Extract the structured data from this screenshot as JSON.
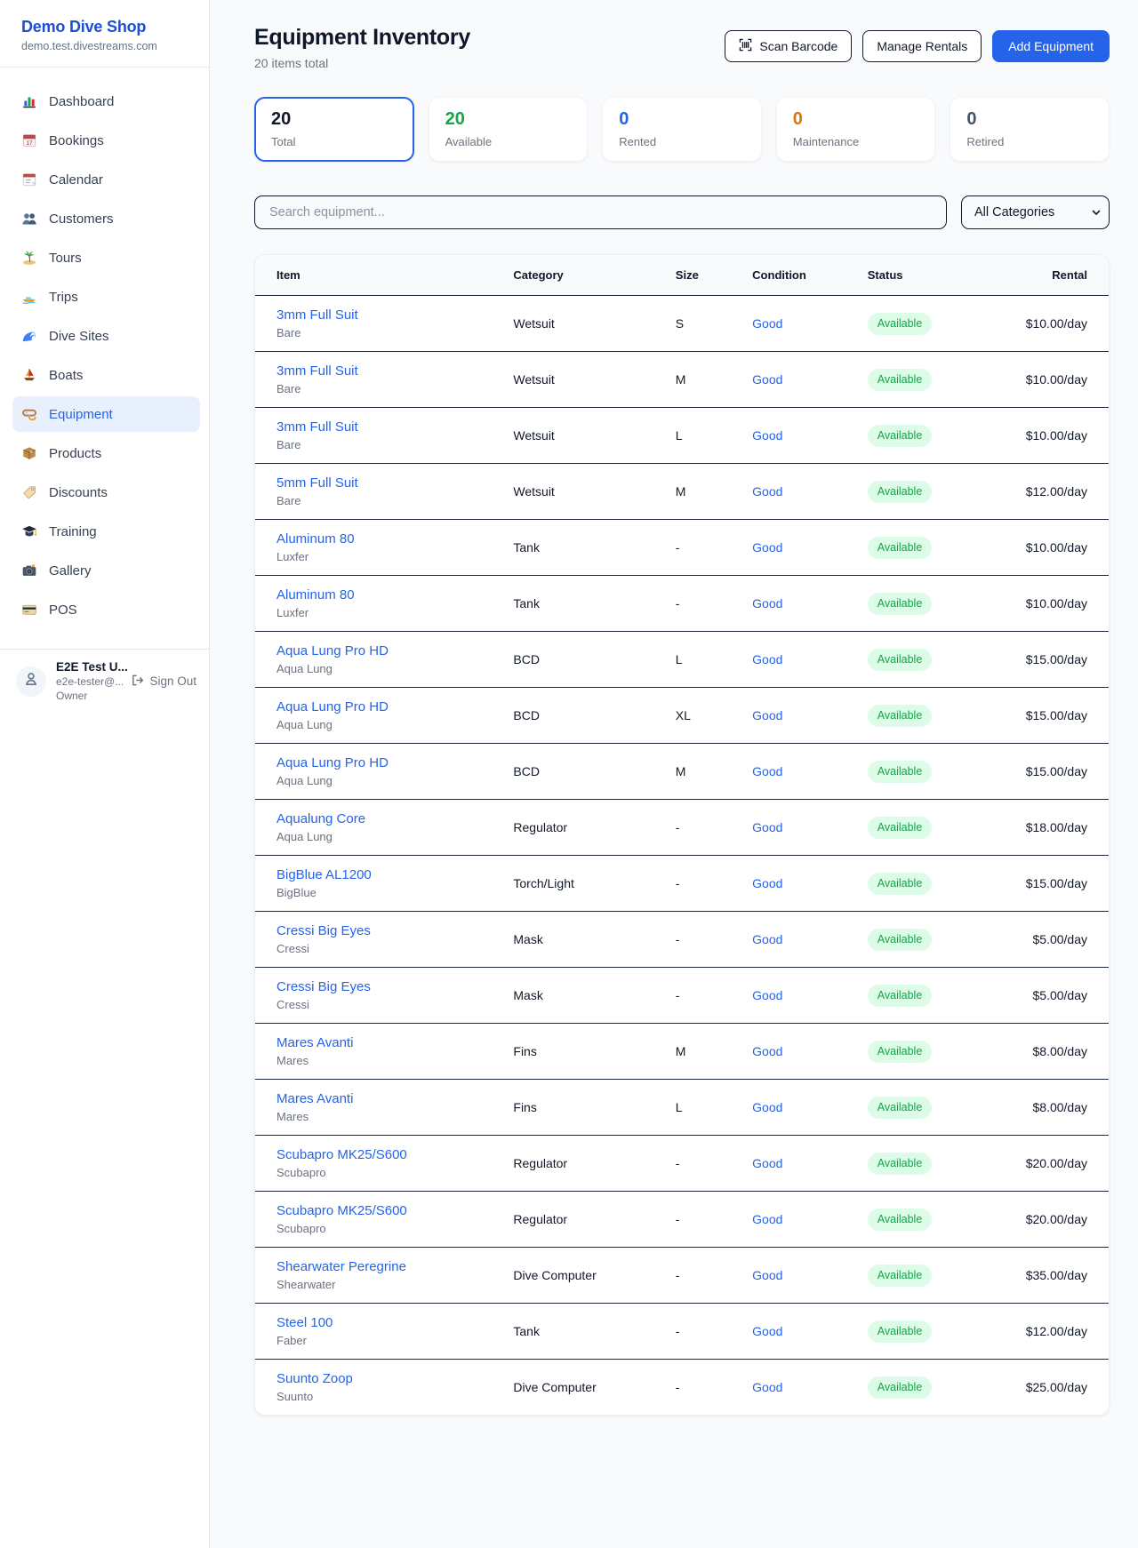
{
  "sidebar": {
    "brand": {
      "name": "Demo Dive Shop",
      "domain": "demo.test.divestreams.com"
    },
    "nav": [
      {
        "id": "dashboard",
        "label": "Dashboard",
        "icon": "dashboard",
        "active": false
      },
      {
        "id": "bookings",
        "label": "Bookings",
        "icon": "bookings",
        "active": false
      },
      {
        "id": "calendar",
        "label": "Calendar",
        "icon": "calendar",
        "active": false
      },
      {
        "id": "customers",
        "label": "Customers",
        "icon": "customers",
        "active": false
      },
      {
        "id": "tours",
        "label": "Tours",
        "icon": "tours",
        "active": false
      },
      {
        "id": "trips",
        "label": "Trips",
        "icon": "trips",
        "active": false
      },
      {
        "id": "dive-sites",
        "label": "Dive Sites",
        "icon": "dive-sites",
        "active": false
      },
      {
        "id": "boats",
        "label": "Boats",
        "icon": "boats",
        "active": false
      },
      {
        "id": "equipment",
        "label": "Equipment",
        "icon": "equipment",
        "active": true
      },
      {
        "id": "products",
        "label": "Products",
        "icon": "products",
        "active": false
      },
      {
        "id": "discounts",
        "label": "Discounts",
        "icon": "discounts",
        "active": false
      },
      {
        "id": "training",
        "label": "Training",
        "icon": "training",
        "active": false
      },
      {
        "id": "gallery",
        "label": "Gallery",
        "icon": "gallery",
        "active": false
      },
      {
        "id": "pos",
        "label": "POS",
        "icon": "pos",
        "active": false
      }
    ],
    "user": {
      "name": "E2E Test U...",
      "email": "e2e-tester@...",
      "role": "Owner",
      "sign_out_label": "Sign Out"
    }
  },
  "header": {
    "title": "Equipment Inventory",
    "subtitle": "20 items total",
    "scan_barcode_label": "Scan Barcode",
    "manage_rentals_label": "Manage Rentals",
    "add_equipment_label": "Add Equipment"
  },
  "stats": [
    {
      "value": "20",
      "label": "Total",
      "color": "#0f172a",
      "selected": true
    },
    {
      "value": "20",
      "label": "Available",
      "color": "#16a34a",
      "selected": false
    },
    {
      "value": "0",
      "label": "Rented",
      "color": "#2563eb",
      "selected": false
    },
    {
      "value": "0",
      "label": "Maintenance",
      "color": "#d97706",
      "selected": false
    },
    {
      "value": "0",
      "label": "Retired",
      "color": "#475569",
      "selected": false
    }
  ],
  "filters": {
    "search_placeholder": "Search equipment...",
    "category_selected": "All Categories"
  },
  "table": {
    "columns": [
      "Item",
      "Category",
      "Size",
      "Condition",
      "Status",
      "Rental"
    ],
    "rows": [
      {
        "item": "3mm Full Suit",
        "brand": "Bare",
        "category": "Wetsuit",
        "size": "S",
        "condition": "Good",
        "status": "Available",
        "rental": "$10.00/day"
      },
      {
        "item": "3mm Full Suit",
        "brand": "Bare",
        "category": "Wetsuit",
        "size": "M",
        "condition": "Good",
        "status": "Available",
        "rental": "$10.00/day"
      },
      {
        "item": "3mm Full Suit",
        "brand": "Bare",
        "category": "Wetsuit",
        "size": "L",
        "condition": "Good",
        "status": "Available",
        "rental": "$10.00/day"
      },
      {
        "item": "5mm Full Suit",
        "brand": "Bare",
        "category": "Wetsuit",
        "size": "M",
        "condition": "Good",
        "status": "Available",
        "rental": "$12.00/day"
      },
      {
        "item": "Aluminum 80",
        "brand": "Luxfer",
        "category": "Tank",
        "size": "-",
        "condition": "Good",
        "status": "Available",
        "rental": "$10.00/day"
      },
      {
        "item": "Aluminum 80",
        "brand": "Luxfer",
        "category": "Tank",
        "size": "-",
        "condition": "Good",
        "status": "Available",
        "rental": "$10.00/day"
      },
      {
        "item": "Aqua Lung Pro HD",
        "brand": "Aqua Lung",
        "category": "BCD",
        "size": "L",
        "condition": "Good",
        "status": "Available",
        "rental": "$15.00/day"
      },
      {
        "item": "Aqua Lung Pro HD",
        "brand": "Aqua Lung",
        "category": "BCD",
        "size": "XL",
        "condition": "Good",
        "status": "Available",
        "rental": "$15.00/day"
      },
      {
        "item": "Aqua Lung Pro HD",
        "brand": "Aqua Lung",
        "category": "BCD",
        "size": "M",
        "condition": "Good",
        "status": "Available",
        "rental": "$15.00/day"
      },
      {
        "item": "Aqualung Core",
        "brand": "Aqua Lung",
        "category": "Regulator",
        "size": "-",
        "condition": "Good",
        "status": "Available",
        "rental": "$18.00/day"
      },
      {
        "item": "BigBlue AL1200",
        "brand": "BigBlue",
        "category": "Torch/Light",
        "size": "-",
        "condition": "Good",
        "status": "Available",
        "rental": "$15.00/day"
      },
      {
        "item": "Cressi Big Eyes",
        "brand": "Cressi",
        "category": "Mask",
        "size": "-",
        "condition": "Good",
        "status": "Available",
        "rental": "$5.00/day"
      },
      {
        "item": "Cressi Big Eyes",
        "brand": "Cressi",
        "category": "Mask",
        "size": "-",
        "condition": "Good",
        "status": "Available",
        "rental": "$5.00/day"
      },
      {
        "item": "Mares Avanti",
        "brand": "Mares",
        "category": "Fins",
        "size": "M",
        "condition": "Good",
        "status": "Available",
        "rental": "$8.00/day"
      },
      {
        "item": "Mares Avanti",
        "brand": "Mares",
        "category": "Fins",
        "size": "L",
        "condition": "Good",
        "status": "Available",
        "rental": "$8.00/day"
      },
      {
        "item": "Scubapro MK25/S600",
        "brand": "Scubapro",
        "category": "Regulator",
        "size": "-",
        "condition": "Good",
        "status": "Available",
        "rental": "$20.00/day"
      },
      {
        "item": "Scubapro MK25/S600",
        "brand": "Scubapro",
        "category": "Regulator",
        "size": "-",
        "condition": "Good",
        "status": "Available",
        "rental": "$20.00/day"
      },
      {
        "item": "Shearwater Peregrine",
        "brand": "Shearwater",
        "category": "Dive Computer",
        "size": "-",
        "condition": "Good",
        "status": "Available",
        "rental": "$35.00/day"
      },
      {
        "item": "Steel 100",
        "brand": "Faber",
        "category": "Tank",
        "size": "-",
        "condition": "Good",
        "status": "Available",
        "rental": "$12.00/day"
      },
      {
        "item": "Suunto Zoop",
        "brand": "Suunto",
        "category": "Dive Computer",
        "size": "-",
        "condition": "Good",
        "status": "Available",
        "rental": "$25.00/day"
      }
    ]
  }
}
